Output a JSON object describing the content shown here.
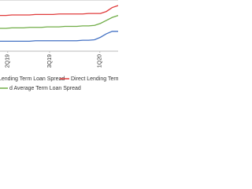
{
  "chart_data": {
    "type": "line",
    "x": [
      0,
      1,
      2,
      3,
      4,
      5,
      6,
      7,
      8,
      9,
      10,
      11,
      12,
      13,
      14,
      15,
      16,
      17,
      18,
      19,
      20
    ],
    "xlim": [
      0,
      20
    ],
    "xticks": [
      {
        "value": 1.3,
        "label": "2Q19"
      },
      {
        "value": 8.4,
        "label": "3Q19"
      },
      {
        "value": 16.9,
        "label": "1Q20"
      }
    ],
    "ylim": [
      0,
      100
    ],
    "series": [
      {
        "name": "Lending Term Loan Spread",
        "color": "#4472c4",
        "values": [
          20,
          20,
          20,
          20,
          20,
          20,
          21,
          21,
          21,
          21,
          21,
          21,
          21,
          21,
          22,
          22,
          23,
          28,
          35,
          40,
          40
        ]
      },
      {
        "name": "Direct Lending Term L",
        "color": "#e03a3a",
        "values": [
          72,
          72,
          73,
          73,
          73,
          73,
          74,
          74,
          74,
          74,
          75,
          75,
          75,
          75,
          75,
          76,
          76,
          76,
          80,
          88,
          92
        ]
      },
      {
        "name": "d Average Term Loan Spread",
        "color": "#70ad47",
        "values": [
          46,
          46,
          47,
          47,
          47,
          48,
          48,
          48,
          49,
          49,
          49,
          50,
          50,
          50,
          51,
          51,
          52,
          56,
          62,
          68,
          72
        ]
      }
    ]
  }
}
